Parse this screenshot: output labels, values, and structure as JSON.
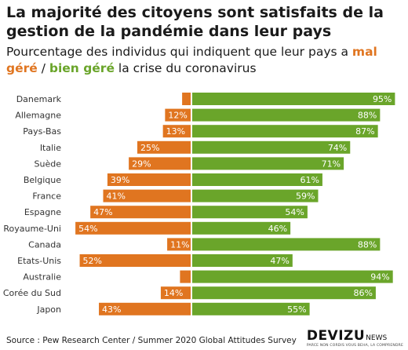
{
  "title": "La majorité des citoyens sont satisfaits de la gestion de la pandémie dans leur pays",
  "subtitle": {
    "part1": "Pourcentage des individus qui indiquent que leur pays a ",
    "neg_label": "mal géré",
    "part2": " / ",
    "pos_label": "bien géré",
    "part3": " la crise du coronavirus"
  },
  "colors": {
    "negative": "#e07520",
    "positive": "#6aa52a"
  },
  "chart_data": {
    "type": "bar",
    "orientation": "horizontal-diverging",
    "categories": [
      "Danemark",
      "Allemagne",
      "Pays-Bas",
      "Italie",
      "Suède",
      "Belgique",
      "France",
      "Espagne",
      "Royaume-Uni",
      "Canada",
      "Etats-Unis",
      "Australie",
      "Corée du Sud",
      "Japon"
    ],
    "series": [
      {
        "name": "mal géré",
        "values": [
          4,
          12,
          13,
          25,
          29,
          39,
          41,
          47,
          54,
          11,
          52,
          5,
          14,
          43
        ],
        "labels": [
          "",
          "12%",
          "13%",
          "25%",
          "29%",
          "39%",
          "41%",
          "47%",
          "54%",
          "11%",
          "52%",
          "",
          "14%",
          "43%"
        ]
      },
      {
        "name": "bien géré",
        "values": [
          95,
          88,
          87,
          74,
          71,
          61,
          59,
          54,
          46,
          88,
          47,
          94,
          86,
          55
        ],
        "labels": [
          "95%",
          "88%",
          "87%",
          "74%",
          "71%",
          "61%",
          "59%",
          "54%",
          "46%",
          "88%",
          "47%",
          "94%",
          "86%",
          "55%"
        ]
      }
    ],
    "xlim": [
      -60,
      100
    ],
    "grid": false
  },
  "footer": {
    "source": "Source : Pew Research Center / Summer 2020 Global Attitudes Survey",
    "logo": "DEVIZU",
    "logo_suffix": "NEWS",
    "logo_tagline": "PARCE NON CORDIS VOUS BEHA, LA COMPRENDRE"
  }
}
